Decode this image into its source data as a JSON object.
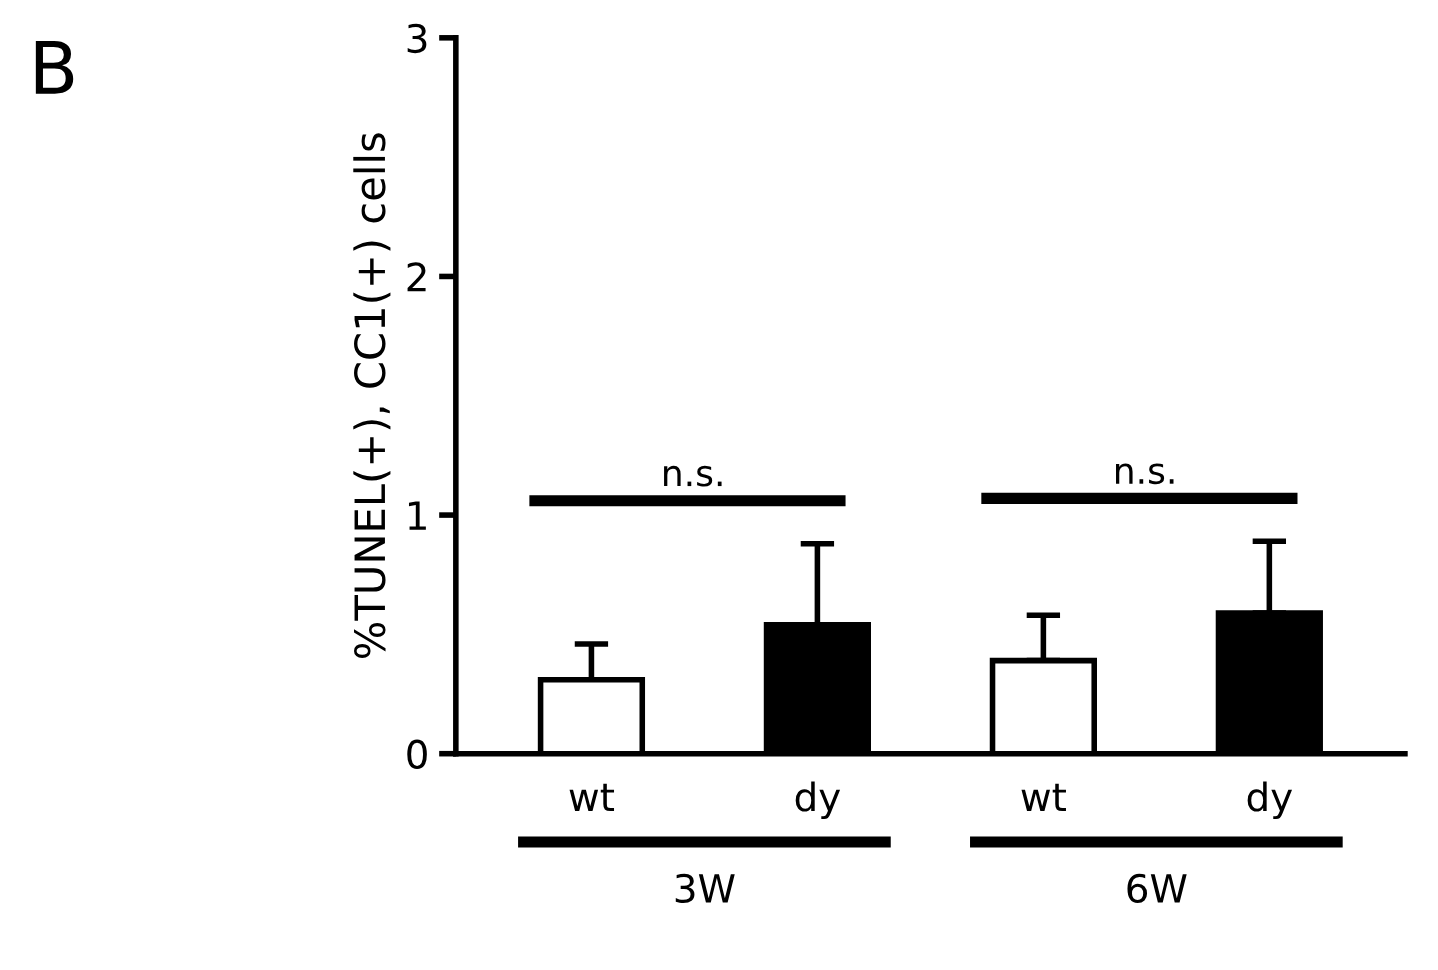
{
  "chart_data": {
    "type": "bar",
    "ylabel": "%TUNEL(+), CC1(+) cells",
    "categories": [
      "wt",
      "dy",
      "wt",
      "dy"
    ],
    "values": [
      0.31,
      0.54,
      0.39,
      0.59
    ],
    "colors": [
      "#ffffff",
      "#000000",
      "#ffffff",
      "#000000"
    ],
    "errors": [
      [
        0.31,
        0.46
      ],
      [
        0.54,
        0.88
      ],
      [
        0.39,
        0.58
      ],
      [
        0.59,
        0.89
      ]
    ],
    "ylim": [
      0,
      3
    ],
    "yticks": [
      0,
      1,
      2,
      3
    ],
    "grid": false,
    "legend": false,
    "annotations": [
      "B",
      "n.s.",
      "n.s.",
      "3W",
      "6W"
    ]
  }
}
